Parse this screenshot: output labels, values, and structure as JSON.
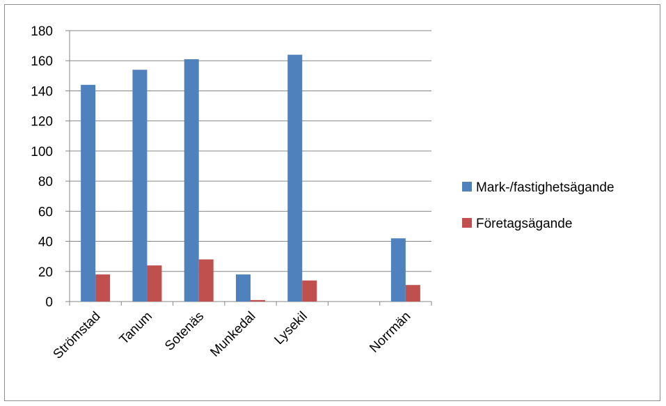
{
  "chart_data": {
    "type": "bar",
    "categories": [
      "Strömstad",
      "Tanum",
      "Sotenäs",
      "Munkedal",
      "Lysekil",
      "",
      "Norrmän"
    ],
    "series": [
      {
        "name": "Mark-/fastighetsägande",
        "color": "#4f81bd",
        "values": [
          144,
          154,
          161,
          18,
          164,
          null,
          42
        ]
      },
      {
        "name": "Företagsägande",
        "color": "#c0504d",
        "values": [
          18,
          24,
          28,
          1,
          14,
          null,
          11
        ]
      }
    ],
    "ylim": [
      0,
      180
    ],
    "yticks": [
      0,
      20,
      40,
      60,
      80,
      100,
      120,
      140,
      160,
      180
    ],
    "grid": true,
    "legend_position": "right"
  }
}
